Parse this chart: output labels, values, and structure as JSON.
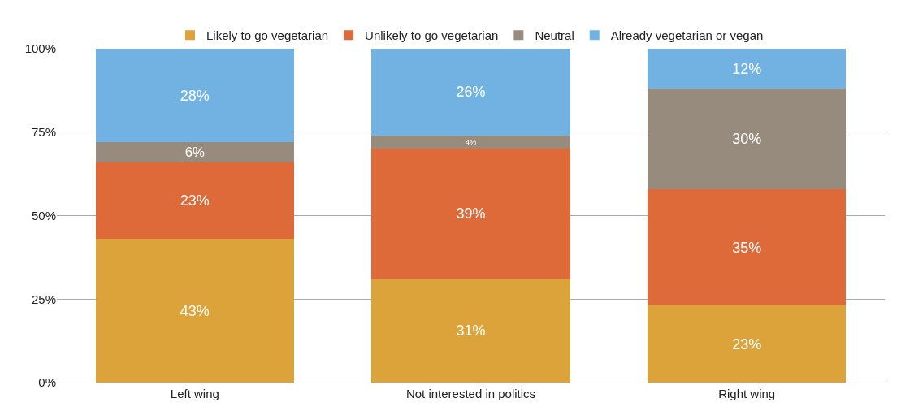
{
  "chart_data": {
    "type": "bar",
    "stacked": true,
    "categories": [
      "Left wing",
      "Not interested in politics",
      "Right wing"
    ],
    "series": [
      {
        "name": "Likely to go vegetarian",
        "color": "#dba33a",
        "values": [
          43,
          31,
          23
        ],
        "value_labels": [
          "43%",
          "31%",
          "23%"
        ]
      },
      {
        "name": "Unlikely to go vegetarian",
        "color": "#dd6a38",
        "values": [
          23,
          39,
          35
        ],
        "value_labels": [
          "23%",
          "39%",
          "35%"
        ]
      },
      {
        "name": "Neutral",
        "color": "#978b7e",
        "values": [
          6,
          4,
          30
        ],
        "value_labels": [
          "6%",
          "4%",
          "30%"
        ]
      },
      {
        "name": "Already vegetarian or vegan",
        "color": "#72b2e2",
        "values": [
          28,
          26,
          12
        ],
        "value_labels": [
          "28%",
          "26%",
          "12%"
        ]
      }
    ],
    "ylim": [
      0,
      100
    ],
    "yticks": [
      {
        "value": 0,
        "label": "0%"
      },
      {
        "value": 25,
        "label": "25%"
      },
      {
        "value": 50,
        "label": "50%"
      },
      {
        "value": 75,
        "label": "75%"
      },
      {
        "value": 100,
        "label": "100%"
      }
    ],
    "grid": "y",
    "legend": "top"
  }
}
